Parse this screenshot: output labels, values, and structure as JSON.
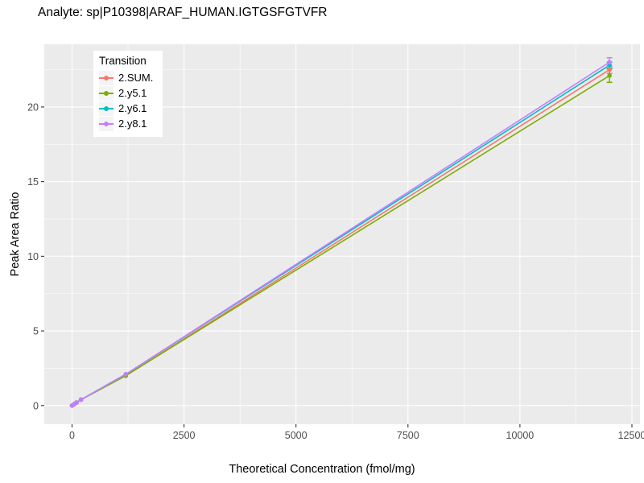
{
  "chart_data": {
    "type": "line",
    "title": "Analyte: sp|P10398|ARAF_HUMAN.IGTGSFGTVFR",
    "xlabel": "Theoretical Concentration (fmol/mg)",
    "ylabel": "Peak Area Ratio",
    "legend": {
      "title": "Transition",
      "position": "top-left-inside"
    },
    "x_ticks": [
      0,
      2500,
      5000,
      7500,
      10000,
      12500
    ],
    "y_ticks": [
      0,
      5,
      10,
      15,
      20
    ],
    "x_minor_ticks": [
      1250,
      3750,
      6250,
      8750,
      11250
    ],
    "y_minor_ticks": [
      2.5,
      7.5,
      12.5,
      17.5,
      22.5
    ],
    "xlim": [
      -620,
      12680
    ],
    "ylim": [
      -1.25,
      24.2
    ],
    "x": [
      0,
      50,
      100,
      200,
      1200,
      12000
    ],
    "series": [
      {
        "name": "2.SUM.",
        "color": "#F8766D",
        "values": [
          0,
          0.1,
          0.2,
          0.4,
          2.0,
          22.5
        ],
        "err_last": 0.25
      },
      {
        "name": "2.y5.1",
        "color": "#7CAE00",
        "values": [
          0,
          0.1,
          0.2,
          0.4,
          2.0,
          22.1
        ],
        "err_last": 0.45
      },
      {
        "name": "2.y6.1",
        "color": "#00BFC4",
        "values": [
          0,
          0.1,
          0.2,
          0.4,
          2.1,
          22.8
        ],
        "err_last": 0.2
      },
      {
        "name": "2.y8.1",
        "color": "#C77CFF",
        "values": [
          0,
          0.1,
          0.2,
          0.4,
          2.1,
          23.0
        ],
        "err_last": 0.3
      }
    ],
    "panel_background": "#EBEBEB",
    "grid_color": "#FFFFFF",
    "tick_color": "#333333",
    "tick_label_color": "#4D4D4D"
  }
}
